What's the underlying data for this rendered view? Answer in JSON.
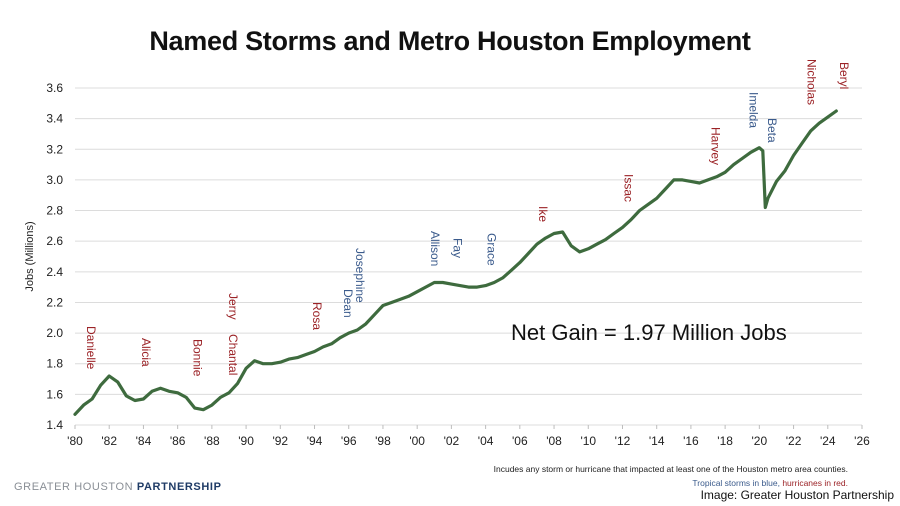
{
  "chart_data": {
    "type": "line",
    "title": "Named Storms and Metro Houston Employment",
    "ylabel": "Jobs (Millions)",
    "xlabel": "",
    "ylim": [
      1.4,
      3.6
    ],
    "xlim": [
      1980,
      2026
    ],
    "grid": true,
    "y_ticks": [
      "1.4",
      "1.6",
      "1.8",
      "2.0",
      "2.2",
      "2.4",
      "2.6",
      "2.8",
      "3.0",
      "3.2",
      "3.4",
      "3.6"
    ],
    "x_ticks": [
      "'80",
      "'82",
      "'84",
      "'86",
      "'88",
      "'90",
      "'92",
      "'94",
      "'96",
      "'98",
      "'00",
      "'02",
      "'04",
      "'06",
      "'08",
      "'10",
      "'12",
      "'14",
      "'16",
      "'18",
      "'20",
      "'22",
      "'24",
      "'26"
    ],
    "line_color": "#3e6b3e",
    "x": [
      1980.0,
      1980.5,
      1981.0,
      1981.5,
      1982.0,
      1982.5,
      1983.0,
      1983.5,
      1984.0,
      1984.5,
      1985.0,
      1985.5,
      1986.0,
      1986.5,
      1987.0,
      1987.5,
      1988.0,
      1988.5,
      1989.0,
      1989.5,
      1990.0,
      1990.5,
      1991.0,
      1991.5,
      1992.0,
      1992.5,
      1993.0,
      1993.5,
      1994.0,
      1994.5,
      1995.0,
      1995.5,
      1996.0,
      1996.5,
      1997.0,
      1997.5,
      1998.0,
      1998.5,
      1999.0,
      1999.5,
      2000.0,
      2000.5,
      2001.0,
      2001.5,
      2002.0,
      2002.5,
      2003.0,
      2003.5,
      2004.0,
      2004.5,
      2005.0,
      2005.5,
      2006.0,
      2006.5,
      2007.0,
      2007.5,
      2008.0,
      2008.5,
      2009.0,
      2009.5,
      2010.0,
      2010.5,
      2011.0,
      2011.5,
      2012.0,
      2012.5,
      2013.0,
      2013.5,
      2014.0,
      2014.5,
      2015.0,
      2015.5,
      2016.0,
      2016.5,
      2017.0,
      2017.5,
      2018.0,
      2018.5,
      2019.0,
      2019.5,
      2020.0,
      2020.2,
      2020.35,
      2020.5,
      2021.0,
      2021.5,
      2022.0,
      2022.5,
      2023.0,
      2023.5,
      2024.0,
      2024.5
    ],
    "series": [
      {
        "values": [
          1.47,
          1.53,
          1.57,
          1.66,
          1.72,
          1.68,
          1.59,
          1.56,
          1.57,
          1.62,
          1.64,
          1.62,
          1.61,
          1.58,
          1.51,
          1.5,
          1.53,
          1.58,
          1.61,
          1.67,
          1.77,
          1.82,
          1.8,
          1.8,
          1.81,
          1.83,
          1.84,
          1.86,
          1.88,
          1.91,
          1.93,
          1.97,
          2.0,
          2.02,
          2.06,
          2.12,
          2.18,
          2.2,
          2.22,
          2.24,
          2.27,
          2.3,
          2.33,
          2.33,
          2.32,
          2.31,
          2.3,
          2.3,
          2.31,
          2.33,
          2.36,
          2.41,
          2.46,
          2.52,
          2.58,
          2.62,
          2.65,
          2.66,
          2.57,
          2.53,
          2.55,
          2.58,
          2.61,
          2.65,
          2.69,
          2.74,
          2.8,
          2.84,
          2.88,
          2.94,
          3.0,
          3.0,
          2.99,
          2.98,
          3.0,
          3.02,
          3.05,
          3.1,
          3.14,
          3.18,
          3.21,
          3.19,
          2.82,
          2.88,
          2.99,
          3.06,
          3.16,
          3.24,
          3.32,
          3.37,
          3.41,
          3.45
        ]
      }
    ],
    "storms": [
      {
        "name": "Danielle",
        "type": "hurricane"
      },
      {
        "name": "Alicia",
        "type": "hurricane"
      },
      {
        "name": "Bonnie",
        "type": "hurricane"
      },
      {
        "name": "Jerry",
        "type": "hurricane"
      },
      {
        "name": "Chantal",
        "type": "hurricane"
      },
      {
        "name": "Rosa",
        "type": "hurricane"
      },
      {
        "name": "Dean",
        "type": "tropical"
      },
      {
        "name": "Josephine",
        "type": "tropical"
      },
      {
        "name": "Allison",
        "type": "tropical"
      },
      {
        "name": "Fay",
        "type": "tropical"
      },
      {
        "name": "Grace",
        "type": "tropical"
      },
      {
        "name": "Ike",
        "type": "hurricane"
      },
      {
        "name": "Issac",
        "type": "hurricane"
      },
      {
        "name": "Harvey",
        "type": "hurricane"
      },
      {
        "name": "Imelda",
        "type": "tropical"
      },
      {
        "name": "Beta",
        "type": "tropical"
      },
      {
        "name": "Nicholas",
        "type": "hurricane"
      },
      {
        "name": "Beryl",
        "type": "hurricane"
      }
    ],
    "colors": {
      "tropical": "#3b5b8c",
      "hurricane": "#9b2226"
    },
    "annotation": "Net Gain = 1.97 Million Jobs"
  },
  "footnote": {
    "line1": "Incudes any storm or hurricane that impacted at least one of the Houston metro area counties.",
    "line2_blue": "Tropical storms in blue,",
    "line2_red": "hurricanes in red."
  },
  "logo": {
    "light": "GREATER HOUSTON",
    "strong": "PARTNERSHIP"
  },
  "credit": "Image: Greater Houston Partnership"
}
